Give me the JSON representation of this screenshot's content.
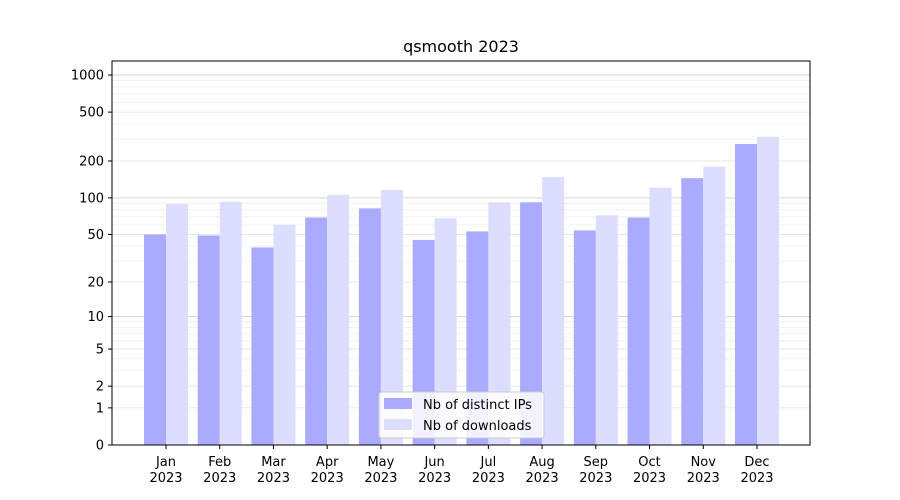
{
  "chart_data": {
    "type": "bar",
    "title": "qsmooth 2023",
    "xlabel": "",
    "ylabel": "",
    "y_scale": "log(1+y)",
    "ylim": [
      0,
      1300
    ],
    "y_ticks": [
      0,
      1,
      2,
      5,
      10,
      20,
      50,
      100,
      200,
      500,
      1000
    ],
    "categories": [
      [
        "Jan",
        "2023"
      ],
      [
        "Feb",
        "2023"
      ],
      [
        "Mar",
        "2023"
      ],
      [
        "Apr",
        "2023"
      ],
      [
        "May",
        "2023"
      ],
      [
        "Jun",
        "2023"
      ],
      [
        "Jul",
        "2023"
      ],
      [
        "Aug",
        "2023"
      ],
      [
        "Sep",
        "2023"
      ],
      [
        "Oct",
        "2023"
      ],
      [
        "Nov",
        "2023"
      ],
      [
        "Dec",
        "2023"
      ]
    ],
    "series": [
      {
        "name": "Nb of distinct IPs",
        "color": "#aaaaff",
        "values": [
          50,
          49,
          39,
          69,
          82,
          45,
          53,
          92,
          54,
          69,
          145,
          275
        ]
      },
      {
        "name": "Nb of downloads",
        "color": "#ddddff",
        "values": [
          89,
          93,
          60,
          106,
          116,
          68,
          92,
          148,
          72,
          121,
          180,
          315
        ]
      }
    ],
    "grid": true,
    "legend_position": "lower-center"
  }
}
